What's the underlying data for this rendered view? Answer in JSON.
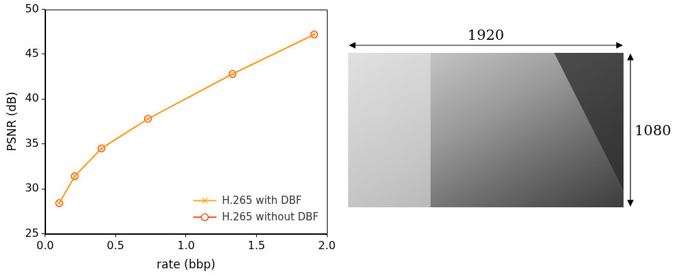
{
  "chart_data": {
    "type": "line",
    "x": [
      0.1,
      0.21,
      0.4,
      0.73,
      1.33,
      1.91
    ],
    "series": [
      {
        "name": "H.265 with DBF",
        "color": "#ffa500",
        "marker": "x",
        "line_style": "solid",
        "values": [
          28.4,
          31.4,
          34.5,
          37.8,
          42.8,
          47.2
        ]
      },
      {
        "name": "H.265 without DBF",
        "color": "#ff3300",
        "marker": "circle",
        "line_style": "solid",
        "values": [
          28.4,
          31.4,
          34.5,
          37.8,
          42.8,
          47.2
        ]
      }
    ],
    "xlabel": "rate (bbp)",
    "ylabel": "PSNR (dB)",
    "xlim": [
      0,
      2
    ],
    "xticks": [
      {
        "value": 0,
        "label": "0.0"
      },
      {
        "value": 0.5,
        "label": "0.5"
      },
      {
        "value": 1,
        "label": "1.0"
      },
      {
        "value": 1.5,
        "label": "1.5"
      },
      {
        "value": 2,
        "label": "2.0"
      }
    ],
    "ylim": [
      25,
      50
    ],
    "yticks": [
      25,
      30,
      35,
      40,
      45,
      50
    ],
    "grid": false,
    "legend": "lower right"
  },
  "image": {
    "width_label": 1920,
    "height_label": 1080
  }
}
